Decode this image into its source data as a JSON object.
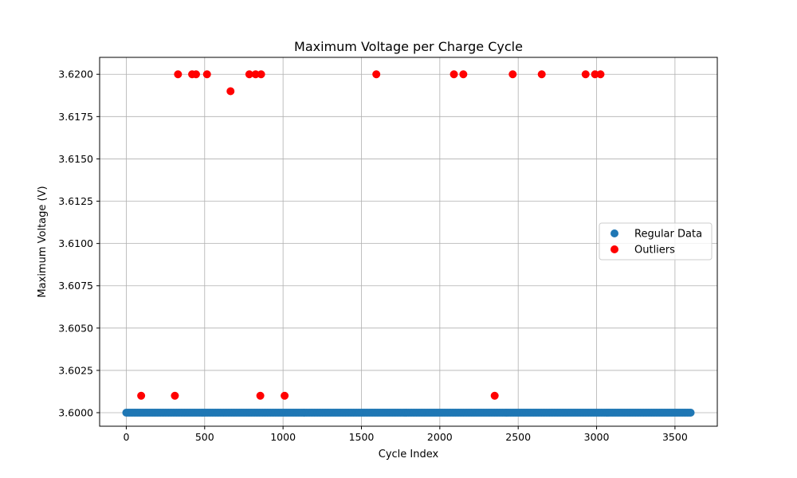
{
  "chart_data": {
    "type": "scatter",
    "title": "Maximum Voltage per Charge Cycle",
    "xlabel": "Cycle Index",
    "ylabel": "Maximum Voltage (V)",
    "xlim": [
      -170,
      3770
    ],
    "ylim": [
      3.5992,
      3.621
    ],
    "x_ticks": [
      0,
      500,
      1000,
      1500,
      2000,
      2500,
      3000,
      3500
    ],
    "x_tick_labels": [
      "0",
      "500",
      "1000",
      "1500",
      "2000",
      "2500",
      "3000",
      "3500"
    ],
    "y_ticks": [
      3.6,
      3.6025,
      3.605,
      3.6075,
      3.61,
      3.6125,
      3.615,
      3.6175,
      3.62
    ],
    "y_tick_labels": [
      "3.6000",
      "3.6025",
      "3.6050",
      "3.6075",
      "3.6100",
      "3.6125",
      "3.6150",
      "3.6175",
      "3.6200"
    ],
    "grid": true,
    "legend_position": "center-right",
    "series": [
      {
        "name": "Regular Data",
        "color": "#1f77b4",
        "x_range": [
          0,
          3600
        ],
        "x_step": 10,
        "y_constant": 3.6
      },
      {
        "name": "Outliers",
        "color": "#ff0000",
        "points": [
          [
            95,
            3.601
          ],
          [
            310,
            3.601
          ],
          [
            330,
            3.62
          ],
          [
            420,
            3.62
          ],
          [
            445,
            3.62
          ],
          [
            515,
            3.62
          ],
          [
            665,
            3.619
          ],
          [
            785,
            3.62
          ],
          [
            825,
            3.62
          ],
          [
            855,
            3.601
          ],
          [
            860,
            3.62
          ],
          [
            1010,
            3.601
          ],
          [
            1595,
            3.62
          ],
          [
            2090,
            3.62
          ],
          [
            2150,
            3.62
          ],
          [
            2350,
            3.601
          ],
          [
            2465,
            3.62
          ],
          [
            2650,
            3.62
          ],
          [
            2930,
            3.62
          ],
          [
            2990,
            3.62
          ],
          [
            3025,
            3.62
          ]
        ]
      }
    ]
  }
}
